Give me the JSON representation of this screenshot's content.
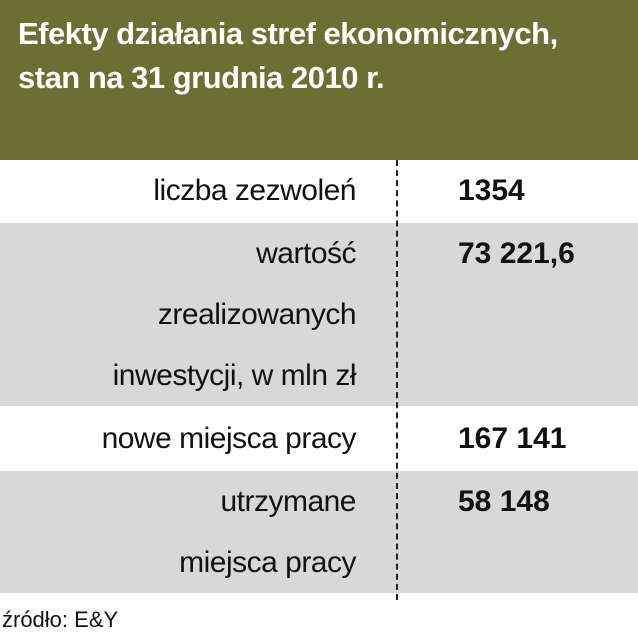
{
  "header": {
    "title_lines": [
      "Efekty działania stref ekonomicznych,",
      "stan na 31 grudnia 2010 r."
    ]
  },
  "table": {
    "rows": [
      {
        "label_lines": [
          "liczba zezwoleń"
        ],
        "value": "1354"
      },
      {
        "label_lines": [
          "wartość",
          "zrealizowanych",
          "inwestycji, w mln zł"
        ],
        "value": "73 221,6"
      },
      {
        "label_lines": [
          "nowe miejsca pracy"
        ],
        "value": "167 141"
      },
      {
        "label_lines": [
          "utrzymane",
          "miejsca pracy"
        ],
        "value": "58 148"
      }
    ]
  },
  "footer": {
    "source": "źródło: E&Y"
  }
}
